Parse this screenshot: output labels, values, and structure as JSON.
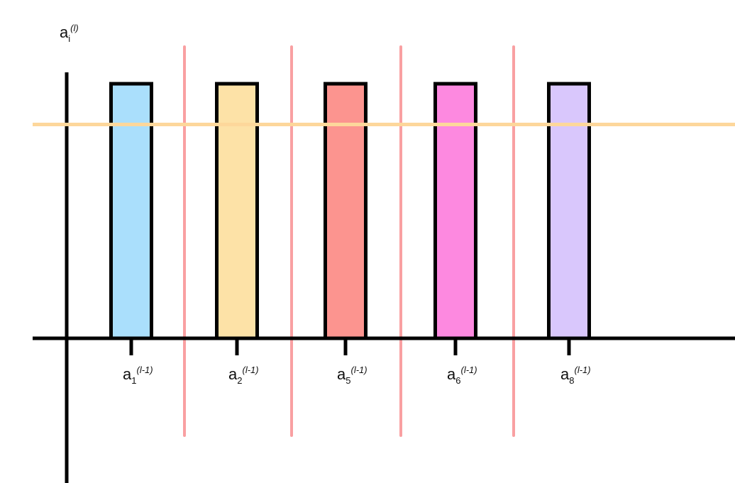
{
  "chart_data": {
    "type": "bar",
    "ylabel": {
      "base": "a",
      "sub": "i",
      "sup": "(l)"
    },
    "categories": [
      {
        "base": "a",
        "sub": "1",
        "sup": "(l-1)"
      },
      {
        "base": "a",
        "sub": "2",
        "sup": "(l-1)"
      },
      {
        "base": "a",
        "sub": "5",
        "sup": "(l-1)"
      },
      {
        "base": "a",
        "sub": "6",
        "sup": "(l-1)"
      },
      {
        "base": "a",
        "sub": "8",
        "sup": "(l-1)"
      }
    ],
    "values": [
      1,
      1,
      1,
      1,
      1
    ],
    "bar_colors": [
      "#aadffc",
      "#fde2a7",
      "#fc948f",
      "#fd89e0",
      "#d9c7fc"
    ],
    "threshold": {
      "value": 0.84,
      "color": "#fdd79b"
    },
    "separators": {
      "count": 4,
      "color": "#f9a0a2"
    },
    "ylim": [
      0,
      1.12
    ],
    "grid": false,
    "legend": "none"
  }
}
